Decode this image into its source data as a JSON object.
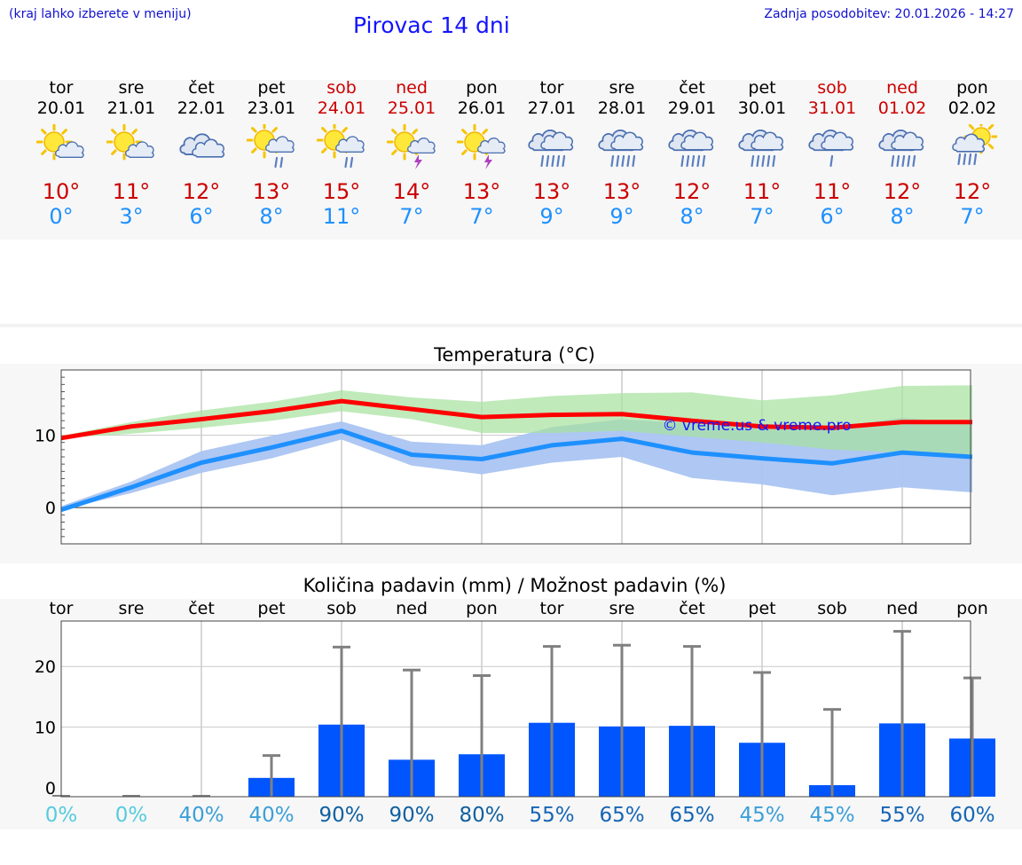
{
  "header": {
    "left_note": "(kraj lahko izberete v meniju)",
    "title": "Pirovac 14 dni",
    "updated": "Zadnja posodobitev: 20.01.2026 - 14:27"
  },
  "colors": {
    "weekend": "#cc0000",
    "max_line": "#ff0000",
    "min_line": "#1e90ff",
    "max_band": "#a8e2a0",
    "min_band": "#aac4f2",
    "bar": "#0055ff",
    "whisker": "#808080"
  },
  "days": [
    {
      "name": "tor",
      "date": "20.01",
      "icon": "sun-cloud-icon",
      "tmax": "10°",
      "tmin": "0°",
      "weekend": false
    },
    {
      "name": "sre",
      "date": "21.01",
      "icon": "sun-cloud-icon",
      "tmax": "11°",
      "tmin": "3°",
      "weekend": false
    },
    {
      "name": "čet",
      "date": "22.01",
      "icon": "cloudy-icon",
      "tmax": "12°",
      "tmin": "6°",
      "weekend": false
    },
    {
      "name": "pet",
      "date": "23.01",
      "icon": "sun-cloud-rain-icon",
      "tmax": "13°",
      "tmin": "8°",
      "weekend": false
    },
    {
      "name": "sob",
      "date": "24.01",
      "icon": "sun-cloud-rain-icon",
      "tmax": "15°",
      "tmin": "11°",
      "weekend": true
    },
    {
      "name": "ned",
      "date": "25.01",
      "icon": "sun-thunder-icon",
      "tmax": "14°",
      "tmin": "7°",
      "weekend": true
    },
    {
      "name": "pon",
      "date": "26.01",
      "icon": "sun-thunder-icon",
      "tmax": "13°",
      "tmin": "7°",
      "weekend": false
    },
    {
      "name": "tor",
      "date": "27.01",
      "icon": "cloud-heavy-rain-icon",
      "tmax": "13°",
      "tmin": "9°",
      "weekend": false
    },
    {
      "name": "sre",
      "date": "28.01",
      "icon": "cloud-heavy-rain-icon",
      "tmax": "13°",
      "tmin": "9°",
      "weekend": false
    },
    {
      "name": "čet",
      "date": "29.01",
      "icon": "cloud-heavy-rain-icon",
      "tmax": "12°",
      "tmin": "8°",
      "weekend": false
    },
    {
      "name": "pet",
      "date": "30.01",
      "icon": "cloud-heavy-rain-icon",
      "tmax": "11°",
      "tmin": "7°",
      "weekend": false
    },
    {
      "name": "sob",
      "date": "31.01",
      "icon": "cloud-rain-icon",
      "tmax": "11°",
      "tmin": "6°",
      "weekend": true
    },
    {
      "name": "ned",
      "date": "01.02",
      "icon": "cloud-heavy-rain-icon",
      "tmax": "12°",
      "tmin": "8°",
      "weekend": true
    },
    {
      "name": "pon",
      "date": "02.02",
      "icon": "sun-cloud-heavy-rain-icon",
      "tmax": "12°",
      "tmin": "7°",
      "weekend": false
    }
  ],
  "chart_data": [
    {
      "type": "line",
      "title": "Temperatura (°C)",
      "ylim": [
        -5,
        19
      ],
      "yticks": [
        0,
        10
      ],
      "x": [
        0,
        1,
        2,
        3,
        4,
        5,
        6,
        7,
        8,
        9,
        10,
        11,
        12,
        13
      ],
      "series": [
        {
          "name": "max",
          "values": [
            9.6,
            11.2,
            12.2,
            13.3,
            14.7,
            13.6,
            12.5,
            12.8,
            12.9,
            12.0,
            11.2,
            11.0,
            11.8,
            11.8
          ]
        },
        {
          "name": "min",
          "values": [
            -0.3,
            2.8,
            6.2,
            8.3,
            10.6,
            7.3,
            6.7,
            8.6,
            9.5,
            7.6,
            6.8,
            6.1,
            7.6,
            7.0
          ]
        }
      ],
      "bands": [
        {
          "name": "max-range",
          "lower": [
            9.6,
            10.2,
            11.0,
            12.0,
            13.3,
            12.2,
            10.3,
            10.3,
            10.6,
            9.8,
            9.0,
            8.0,
            7.6,
            7.0
          ],
          "upper": [
            9.9,
            11.8,
            13.4,
            14.6,
            16.2,
            15.2,
            14.6,
            15.4,
            15.8,
            15.9,
            14.8,
            15.5,
            16.8,
            16.9
          ]
        },
        {
          "name": "min-range",
          "lower": [
            -0.3,
            2.0,
            4.8,
            6.8,
            9.4,
            5.8,
            4.6,
            6.2,
            7.0,
            4.1,
            3.2,
            1.7,
            2.8,
            2.1
          ]
        },
        {
          "name": "min-range-upper",
          "upper": [
            0.2,
            3.6,
            7.8,
            9.9,
            11.9,
            9.1,
            8.6,
            11.1,
            12.2,
            11.6,
            10.8,
            11.1,
            12.4,
            11.6
          ]
        }
      ],
      "watermark": "© vreme.us & vreme.pro"
    },
    {
      "type": "bar",
      "title": "Količina padavin (mm) / Možnost padavin (%)",
      "ylim": [
        -1.5,
        27.5
      ],
      "yticks": [
        0,
        10,
        20
      ],
      "categories": [
        "tor",
        "sre",
        "čet",
        "pet",
        "sob",
        "ned",
        "pon",
        "tor",
        "sre",
        "čet",
        "pet",
        "sob",
        "ned",
        "pon"
      ],
      "values": [
        0,
        0,
        0,
        1.6,
        10.4,
        4.6,
        5.5,
        10.7,
        10.1,
        10.2,
        7.4,
        0.4,
        10.6,
        8.1
      ],
      "error_max": [
        0,
        0,
        0,
        5.3,
        23.2,
        19.4,
        18.5,
        23.3,
        23.5,
        23.3,
        19.0,
        12.9,
        25.8,
        18.1
      ],
      "probabilities": [
        {
          "label": "0%",
          "color": "#55ccdd"
        },
        {
          "label": "0%",
          "color": "#55ccdd"
        },
        {
          "label": "40%",
          "color": "#3b9fd8"
        },
        {
          "label": "40%",
          "color": "#3b9fd8"
        },
        {
          "label": "90%",
          "color": "#1060a0"
        },
        {
          "label": "90%",
          "color": "#1060a0"
        },
        {
          "label": "80%",
          "color": "#1060a0"
        },
        {
          "label": "55%",
          "color": "#1565b5"
        },
        {
          "label": "65%",
          "color": "#1565b5"
        },
        {
          "label": "65%",
          "color": "#1565b5"
        },
        {
          "label": "45%",
          "color": "#3b9fd8"
        },
        {
          "label": "45%",
          "color": "#3b9fd8"
        },
        {
          "label": "55%",
          "color": "#1565b5"
        },
        {
          "label": "60%",
          "color": "#1565b5"
        }
      ]
    }
  ]
}
